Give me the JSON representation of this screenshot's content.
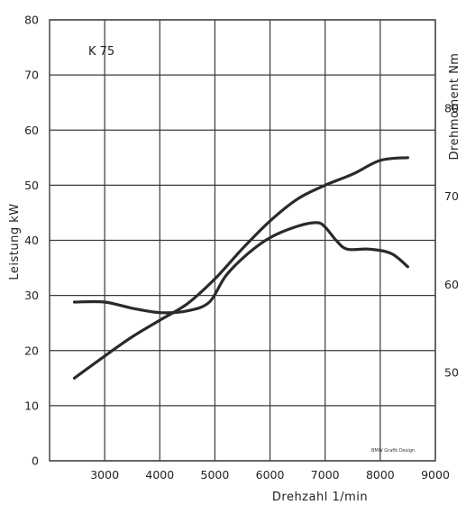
{
  "chart_data": {
    "type": "line",
    "model_label": "K 75",
    "credit": "BMW Grafik Design",
    "xlabel": "Drehzahl 1/min",
    "ylabel_left": "Leistung kW",
    "ylabel_right": "Drehmoment Nm",
    "xlim": [
      2000,
      9000
    ],
    "x_ticks": [
      3000,
      4000,
      5000,
      6000,
      7000,
      8000,
      9000
    ],
    "ylim_left": [
      0,
      80
    ],
    "y_ticks_left": [
      0,
      10,
      20,
      30,
      40,
      50,
      60,
      70,
      80
    ],
    "ylim_right": [
      40,
      90
    ],
    "y_ticks_right": [
      50,
      60,
      70,
      80
    ],
    "grid": true,
    "colors": {
      "line": "#2a2a2a",
      "grid": "#3a3a3a",
      "text": "#222222"
    },
    "series": [
      {
        "axis": "left",
        "x": [
          2450,
          3000,
          3500,
          4000,
          4500,
          5000,
          5500,
          6000,
          6500,
          7000,
          7500,
          8000,
          8500
        ],
        "y": [
          15,
          19,
          22.5,
          25.5,
          28.5,
          33,
          38.5,
          43.5,
          47.5,
          50,
          52,
          54.5,
          55
        ]
      },
      {
        "axis": "right",
        "x": [
          2450,
          3000,
          3500,
          4000,
          4500,
          4900,
          5200,
          5600,
          6000,
          6500,
          6850,
          7000,
          7200,
          7400,
          7800,
          8200,
          8500
        ],
        "y": [
          58,
          58,
          57.3,
          56.8,
          57,
          58,
          61,
          63.5,
          65.3,
          66.6,
          67,
          66.5,
          65,
          64,
          64,
          63.5,
          62
        ]
      }
    ]
  }
}
